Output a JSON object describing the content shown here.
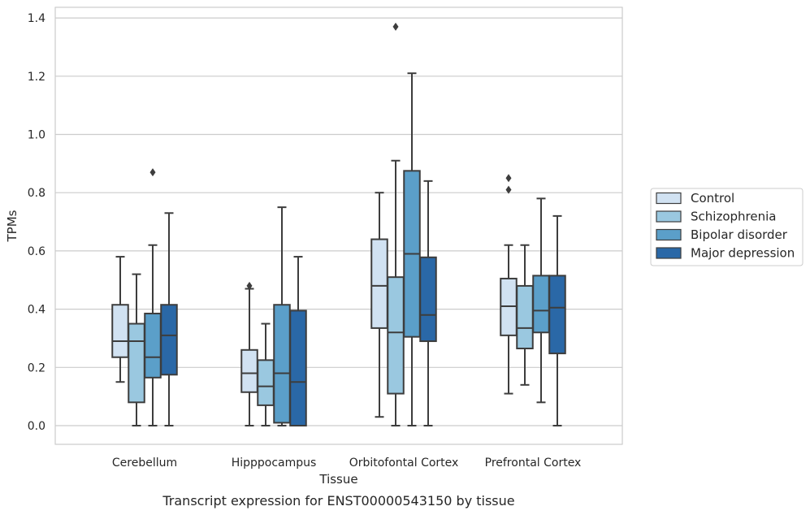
{
  "chart_data": {
    "type": "box",
    "title": "",
    "caption": "Transcript expression for ENST00000543150 by tissue",
    "xlabel": "Tissue",
    "ylabel": "TPMs",
    "ylim": [
      -0.065,
      1.44
    ],
    "yticks": [
      "0.0",
      "0.2",
      "0.4",
      "0.6",
      "0.8",
      "1.0",
      "1.2",
      "1.4"
    ],
    "grid": true,
    "legend_position": "right",
    "categories": [
      "Cerebellum",
      "Hipppocampus",
      "Orbitofontal Cortex",
      "Prefrontal Cortex"
    ],
    "series": [
      {
        "name": "Control",
        "color": "#d1e2f2",
        "boxes": [
          {
            "whisker_low": 0.15,
            "q1": 0.235,
            "median": 0.29,
            "q3": 0.415,
            "whisker_high": 0.58,
            "outliers": []
          },
          {
            "whisker_low": 0.0,
            "q1": 0.115,
            "median": 0.18,
            "q3": 0.26,
            "whisker_high": 0.47,
            "outliers": [
              0.48
            ]
          },
          {
            "whisker_low": 0.03,
            "q1": 0.335,
            "median": 0.48,
            "q3": 0.64,
            "whisker_high": 0.8,
            "outliers": []
          },
          {
            "whisker_low": 0.11,
            "q1": 0.31,
            "median": 0.41,
            "q3": 0.505,
            "whisker_high": 0.62,
            "outliers": [
              0.81,
              0.85
            ]
          }
        ]
      },
      {
        "name": "Schizophrenia",
        "color": "#9ac8e0",
        "boxes": [
          {
            "whisker_low": 0.0,
            "q1": 0.08,
            "median": 0.29,
            "q3": 0.35,
            "whisker_high": 0.52,
            "outliers": []
          },
          {
            "whisker_low": 0.0,
            "q1": 0.07,
            "median": 0.135,
            "q3": 0.225,
            "whisker_high": 0.35,
            "outliers": []
          },
          {
            "whisker_low": 0.0,
            "q1": 0.11,
            "median": 0.32,
            "q3": 0.51,
            "whisker_high": 0.91,
            "outliers": [
              1.37
            ]
          },
          {
            "whisker_low": 0.14,
            "q1": 0.265,
            "median": 0.335,
            "q3": 0.48,
            "whisker_high": 0.62,
            "outliers": []
          }
        ]
      },
      {
        "name": "Bipolar disorder",
        "color": "#5b9fc9",
        "boxes": [
          {
            "whisker_low": 0.0,
            "q1": 0.165,
            "median": 0.235,
            "q3": 0.385,
            "whisker_high": 0.62,
            "outliers": [
              0.87
            ]
          },
          {
            "whisker_low": 0.0,
            "q1": 0.01,
            "median": 0.18,
            "q3": 0.415,
            "whisker_high": 0.75,
            "outliers": []
          },
          {
            "whisker_low": 0.0,
            "q1": 0.305,
            "median": 0.59,
            "q3": 0.875,
            "whisker_high": 1.21,
            "outliers": []
          },
          {
            "whisker_low": 0.08,
            "q1": 0.32,
            "median": 0.395,
            "q3": 0.515,
            "whisker_high": 0.78,
            "outliers": []
          }
        ]
      },
      {
        "name": "Major depression",
        "color": "#2a68a7",
        "boxes": [
          {
            "whisker_low": 0.0,
            "q1": 0.175,
            "median": 0.31,
            "q3": 0.415,
            "whisker_high": 0.73,
            "outliers": []
          },
          {
            "whisker_low": 0.0,
            "q1": 0.0,
            "median": 0.15,
            "q3": 0.395,
            "whisker_high": 0.58,
            "outliers": []
          },
          {
            "whisker_low": 0.0,
            "q1": 0.29,
            "median": 0.38,
            "q3": 0.578,
            "whisker_high": 0.84,
            "outliers": []
          },
          {
            "whisker_low": 0.0,
            "q1": 0.248,
            "median": 0.405,
            "q3": 0.515,
            "whisker_high": 0.72,
            "outliers": []
          }
        ]
      }
    ]
  }
}
